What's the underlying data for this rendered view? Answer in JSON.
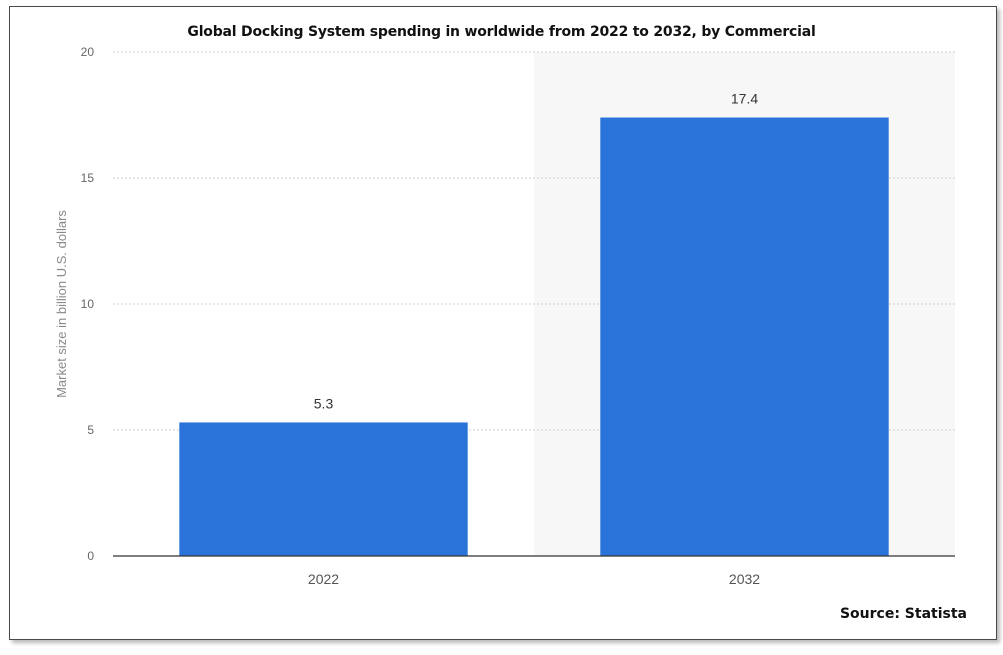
{
  "chart_data": {
    "type": "bar",
    "title": "Global Docking System spending in worldwide from 2022 to 2032, by Commercial",
    "categories": [
      "2022",
      "2032"
    ],
    "values": [
      5.3,
      17.4
    ],
    "data_labels": [
      "5.3",
      "17.4"
    ],
    "xlabel": "",
    "ylabel": "Market size in billion U.S. dollars",
    "ylim": [
      0,
      20
    ],
    "yticks": [
      0,
      5,
      10,
      15,
      20
    ],
    "grid": true,
    "legend": "none",
    "bar_color": "#2a74d9",
    "source": "Source: Statista"
  }
}
